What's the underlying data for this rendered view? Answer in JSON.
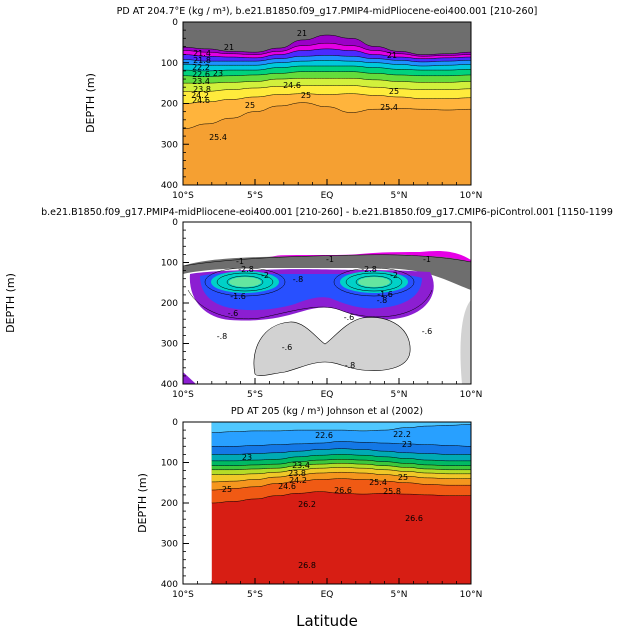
{
  "figure": {
    "xlabel": "Latitude",
    "x_ticks": [
      "10°S",
      "5°S",
      "EQ",
      "5°N",
      "10°N"
    ],
    "y_ticks": [
      "0",
      "100",
      "200",
      "300",
      "400"
    ]
  },
  "chart_data": [
    {
      "type": "heatmap",
      "title": "PD AT 204.7°E (kg / m³), b.e21.B1850.f09_g17.PMIP4-midPliocene-eoi400.001 [210-260]",
      "xlabel": "",
      "ylabel": "DEPTH (m)",
      "xlim": [
        -10,
        10
      ],
      "ylim": [
        400,
        0
      ],
      "field": "potential density (kg/m³)",
      "layers": [
        {
          "depth": [
            62,
            66,
            72,
            74,
            64,
            44,
            32,
            40,
            60,
            72,
            80,
            78,
            74
          ],
          "color": "#6e6e6e"
        },
        {
          "depth": [
            70,
            74,
            78,
            80,
            72,
            58,
            52,
            58,
            70,
            78,
            84,
            82,
            80
          ],
          "color": "#9b00c8"
        },
        {
          "depth": [
            80,
            84,
            86,
            88,
            80,
            70,
            66,
            70,
            80,
            86,
            90,
            88,
            86
          ],
          "color": "#e400e4"
        },
        {
          "depth": [
            92,
            96,
            96,
            96,
            90,
            84,
            82,
            84,
            90,
            94,
            98,
            96,
            94
          ],
          "color": "#4b2aff"
        },
        {
          "depth": [
            104,
            106,
            106,
            106,
            100,
            96,
            94,
            96,
            100,
            104,
            108,
            106,
            104
          ],
          "color": "#1e90ff"
        },
        {
          "depth": [
            118,
            120,
            118,
            118,
            112,
            108,
            108,
            108,
            112,
            116,
            118,
            118,
            116
          ],
          "color": "#00c8dc"
        },
        {
          "depth": [
            132,
            134,
            132,
            130,
            126,
            122,
            122,
            122,
            126,
            130,
            132,
            132,
            130
          ],
          "color": "#00d27d"
        },
        {
          "depth": [
            150,
            150,
            148,
            146,
            140,
            138,
            138,
            138,
            142,
            146,
            148,
            148,
            146
          ],
          "color": "#64dc3c"
        },
        {
          "depth": [
            170,
            170,
            166,
            162,
            158,
            156,
            156,
            156,
            160,
            164,
            166,
            166,
            164
          ],
          "color": "#d2f03c"
        },
        {
          "depth": [
            200,
            196,
            190,
            184,
            178,
            176,
            178,
            176,
            180,
            184,
            188,
            188,
            186
          ],
          "color": "#ffeb3c"
        },
        {
          "depth": [
            262,
            250,
            236,
            220,
            206,
            198,
            208,
            222,
            214,
            212,
            214,
            216,
            214
          ],
          "color": "#ffb43c"
        },
        {
          "depth": [
            400,
            400,
            400,
            400,
            400,
            400,
            400,
            400,
            400,
            400,
            400,
            400,
            400
          ],
          "color": "#f5a032"
        }
      ],
      "contour_labels": [
        "21",
        "21",
        "21",
        "21.4",
        "21.8",
        "22.2",
        "22.6",
        "23",
        "23.4",
        "23.8",
        "24.2",
        "24.6",
        "24.6",
        "25",
        "25",
        "25",
        "25.4",
        "25.4"
      ]
    },
    {
      "type": "heatmap",
      "title": "b.e21.B1850.f09_g17.PMIP4-midPliocene-eoi400.001 [210-260] - b.e21.B1850.f09_g17.CMIP6-piControl.001 [1150-1199",
      "xlabel": "",
      "ylabel": "DEPTH (m)",
      "xlim": [
        -10,
        10
      ],
      "ylim": [
        400,
        0
      ],
      "field": "density difference (kg/m³)",
      "contour_labels": [
        "-1",
        "-1",
        "-1",
        "-2.8",
        "-2",
        "-2.8",
        "-2",
        "-1.6",
        "-1.6",
        "-.6",
        "-.6",
        "-.6",
        "-.8",
        "-.8",
        "-.8",
        "-.8",
        "-.6"
      ],
      "regions": [
        {
          "name": "surface layer",
          "color": "#6e6e6e"
        },
        {
          "name": "purple band",
          "color": "#8c1ed2"
        },
        {
          "name": "blue core",
          "color": "#2850ff"
        },
        {
          "name": "cyan core",
          "color": "#00d2c8"
        },
        {
          "name": "background",
          "color": "#e600e6"
        },
        {
          "name": "gray region",
          "color": "#d2d2d2"
        }
      ]
    },
    {
      "type": "heatmap",
      "title": "PD AT 205 (kg / m³) Johnson et al (2002)",
      "xlabel": "Latitude",
      "ylabel": "DEPTH (m)",
      "xlim": [
        -10,
        10
      ],
      "ylim": [
        400,
        0
      ],
      "data_xlim": [
        -8,
        10
      ],
      "field": "potential density (kg/m³)",
      "layers": [
        {
          "depth": [
            26,
            24,
            22,
            22,
            20,
            20,
            20,
            22,
            20,
            14,
            10,
            8,
            6
          ],
          "color": "#50c8ff"
        },
        {
          "depth": [
            60,
            60,
            58,
            56,
            54,
            52,
            48,
            50,
            52,
            54,
            56,
            58,
            60
          ],
          "color": "#28a0ff"
        },
        {
          "depth": [
            80,
            80,
            78,
            76,
            72,
            68,
            66,
            68,
            72,
            76,
            78,
            80,
            80
          ],
          "color": "#1478e6"
        },
        {
          "depth": [
            96,
            96,
            94,
            92,
            86,
            82,
            80,
            82,
            86,
            90,
            94,
            96,
            96
          ],
          "color": "#00aab4"
        },
        {
          "depth": [
            108,
            108,
            106,
            104,
            98,
            94,
            92,
            94,
            98,
            102,
            106,
            108,
            108
          ],
          "color": "#00b964"
        },
        {
          "depth": [
            118,
            118,
            116,
            114,
            108,
            104,
            102,
            104,
            108,
            112,
            116,
            118,
            118
          ],
          "color": "#3cc83c"
        },
        {
          "depth": [
            130,
            130,
            128,
            124,
            118,
            114,
            112,
            114,
            118,
            122,
            126,
            128,
            128
          ],
          "color": "#b4dc28"
        },
        {
          "depth": [
            148,
            146,
            142,
            136,
            130,
            126,
            124,
            126,
            130,
            134,
            138,
            140,
            140
          ],
          "color": "#f0c828"
        },
        {
          "depth": [
            168,
            164,
            160,
            152,
            146,
            142,
            140,
            142,
            146,
            150,
            154,
            156,
            156
          ],
          "color": "#f5961e"
        },
        {
          "depth": [
            200,
            196,
            190,
            182,
            176,
            172,
            176,
            178,
            176,
            178,
            180,
            182,
            182
          ],
          "color": "#f05a14"
        },
        {
          "depth": [
            400,
            400,
            400,
            400,
            400,
            400,
            400,
            400,
            400,
            400,
            400,
            400,
            400
          ],
          "color": "#d71e14"
        }
      ],
      "contour_labels": [
        "22.2",
        "22.6",
        "23",
        "23",
        "23.4",
        "23.8",
        "24.2",
        "24.6",
        "25",
        "25",
        "25.4",
        "25.8",
        "26.2",
        "26.6",
        "26.6",
        "26.8"
      ]
    }
  ]
}
